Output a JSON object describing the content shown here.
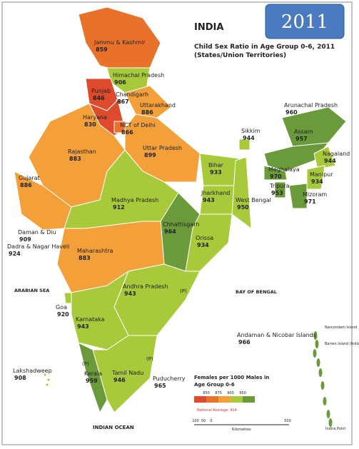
{
  "header": {
    "title": "INDIA",
    "subtitle": "Child Sex Ratio in Age Group 0-6, 2011",
    "subtitle2": "(States/Union Territories)",
    "badge": "2011"
  },
  "regions": [
    {
      "name": "Jammu & Kashmir",
      "value": 859,
      "color": "#e8722a"
    },
    {
      "name": "Himachal Pradesh",
      "value": 906,
      "color": "#a8c93a"
    },
    {
      "name": "Punjab",
      "value": 846,
      "color": "#dd4a2c"
    },
    {
      "name": "Chandigarh",
      "value": 867,
      "color": "#e8722a"
    },
    {
      "name": "Uttarakhand",
      "value": 886,
      "color": "#f4a03a"
    },
    {
      "name": "Haryana",
      "value": 830,
      "color": "#dd4a2c"
    },
    {
      "name": "NCT of Delhi",
      "value": 866,
      "color": "#e8722a"
    },
    {
      "name": "Rajasthan",
      "value": 883,
      "color": "#f4a03a"
    },
    {
      "name": "Uttar Pradesh",
      "value": 899,
      "color": "#f4a03a"
    },
    {
      "name": "Bihar",
      "value": 933,
      "color": "#a8c93a"
    },
    {
      "name": "Sikkim",
      "value": 944,
      "color": "#a8c93a"
    },
    {
      "name": "Arunachal Pradesh",
      "value": 960,
      "color": "#6a9a3a"
    },
    {
      "name": "Assam",
      "value": 957,
      "color": "#6a9a3a"
    },
    {
      "name": "Nagaland",
      "value": 944,
      "color": "#a8c93a"
    },
    {
      "name": "Meghalaya",
      "value": 970,
      "color": "#6a9a3a"
    },
    {
      "name": "Manipur",
      "value": 934,
      "color": "#a8c93a"
    },
    {
      "name": "Tripura",
      "value": 953,
      "color": "#6a9a3a"
    },
    {
      "name": "Mizoram",
      "value": 971,
      "color": "#6a9a3a"
    },
    {
      "name": "Jharkhand",
      "value": 943,
      "color": "#a8c93a"
    },
    {
      "name": "West Bengal",
      "value": 950,
      "color": "#a8c93a"
    },
    {
      "name": "Gujarat",
      "value": 886,
      "color": "#f4a03a"
    },
    {
      "name": "Madhya Pradesh",
      "value": 912,
      "color": "#a8c93a"
    },
    {
      "name": "Chhattisgarh",
      "value": 964,
      "color": "#6a9a3a"
    },
    {
      "name": "Orissa",
      "value": 934,
      "color": "#a8c93a"
    },
    {
      "name": "Daman & Diu",
      "value": 909,
      "color": "#a8c93a"
    },
    {
      "name": "Dadra & Nagar Haveli",
      "value": 924,
      "color": "#a8c93a"
    },
    {
      "name": "Maharashtra",
      "value": 883,
      "color": "#f4a03a"
    },
    {
      "name": "Andhra Pradesh",
      "value": 943,
      "color": "#a8c93a"
    },
    {
      "name": "Goa",
      "value": 920,
      "color": "#a8c93a"
    },
    {
      "name": "Karnataka",
      "value": 943,
      "color": "#a8c93a"
    },
    {
      "name": "Kerala",
      "value": 959,
      "color": "#6a9a3a"
    },
    {
      "name": "Tamil Nadu",
      "value": 946,
      "color": "#a8c93a"
    },
    {
      "name": "Puducherry",
      "value": 965,
      "color": "#6a9a3a"
    },
    {
      "name": "Lakshadweep",
      "value": 908,
      "color": "#a8c93a"
    },
    {
      "name": "Andaman & Nicobar Islands",
      "value": 966,
      "color": "#6a9a3a"
    }
  ],
  "notes": [
    "ARABIAN SEA",
    "BAY OF BENGAL",
    "INDIAN OCEAN",
    "(P)",
    "(P)",
    "(P)",
    "Narcondam Island",
    "Barren Island (India)",
    "Indira Point"
  ],
  "legend": {
    "title": "Females per 1000 Males in",
    "title2": "Age Group 0-6",
    "breaks": [
      850,
      875,
      900,
      950
    ],
    "colors": [
      "#dd4a2c",
      "#e8722a",
      "#f4a03a",
      "#a8c93a",
      "#6a9a3a"
    ],
    "average": "National Average: 914",
    "scale": [
      "100",
      "50",
      "0",
      "500"
    ],
    "unit": "Kilometres"
  }
}
